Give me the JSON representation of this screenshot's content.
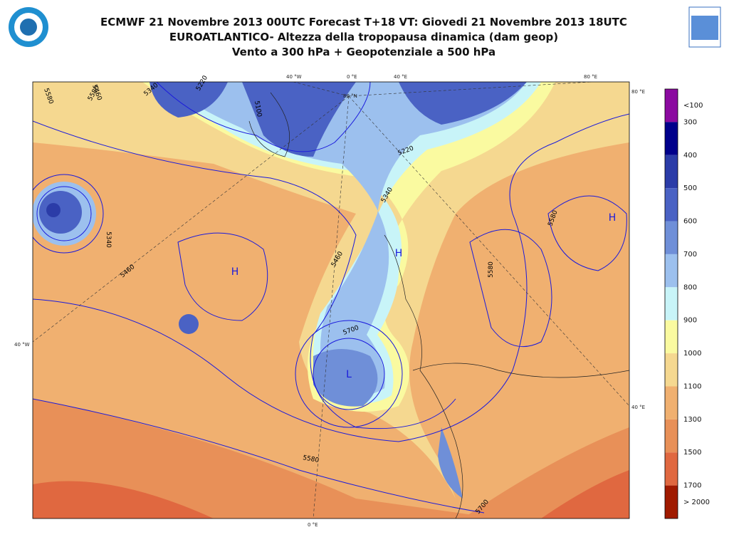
{
  "header": {
    "lines": [
      "ECMWF 21 Novembre 2013 00UTC Forecast T+18 VT: Giovedi 21 Novembre 2013 18UTC",
      "EUROATLANTICO- Altezza della tropopausa dinamica (dam geop)",
      "Vento a 300 hPa   +  Geopotenziale a 500 hPa"
    ]
  },
  "colorbar": {
    "colors": [
      "#8b0aa0",
      "#00008b",
      "#2b3ca8",
      "#4a62c4",
      "#6f8fd8",
      "#9cc0ee",
      "#c8f4f8",
      "#fafaa0",
      "#f5d890",
      "#f0b070",
      "#e89058",
      "#e06840",
      "#a01a00"
    ],
    "labels": [
      "<100",
      "300",
      "400",
      "500",
      "600",
      "700",
      "800",
      "900",
      "1000",
      "1100",
      "1300",
      "1500",
      "1700",
      "> 2000"
    ]
  },
  "map": {
    "coords": [
      "40 °W",
      "0 °E",
      "40 °E",
      "80 °E",
      "80 °N",
      "80 °E",
      "40 °W",
      "40 °E",
      "0 °E"
    ],
    "contours": [
      "5580",
      "5460",
      "5340",
      "5220",
      "5100",
      "5220",
      "5340",
      "5460",
      "5700",
      "5580",
      "5580",
      "5460",
      "5340",
      "5580",
      "5700",
      "5580"
    ],
    "centers": [
      "H",
      "H",
      "H",
      "L"
    ]
  }
}
